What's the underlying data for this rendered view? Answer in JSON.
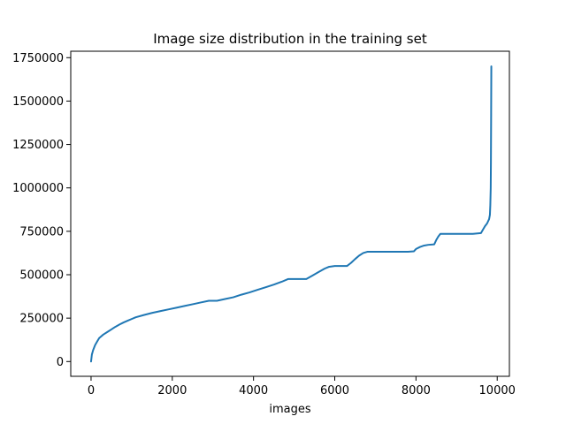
{
  "chart_data": {
    "type": "line",
    "title": "Image size distribution in the training set",
    "xlabel": "images",
    "ylabel": "",
    "xlim": [
      -500,
      10300
    ],
    "ylim": [
      -85000,
      1787000
    ],
    "xticks": [
      0,
      2000,
      4000,
      6000,
      8000,
      10000
    ],
    "yticks": [
      0,
      250000,
      500000,
      750000,
      1000000,
      1250000,
      1500000,
      1750000
    ],
    "xtick_labels": [
      "0",
      "2000",
      "4000",
      "6000",
      "8000",
      "10000"
    ],
    "ytick_labels": [
      "0",
      "250000",
      "500000",
      "750000",
      "1000000",
      "1250000",
      "1500000",
      "1750000"
    ],
    "grid": false,
    "line_color": "#1f77b4",
    "series": [
      {
        "x": [
          0,
          20,
          50,
          100,
          150,
          200,
          300,
          400,
          500,
          600,
          700,
          800,
          900,
          1000,
          1100,
          1300,
          1500,
          1700,
          1900,
          2100,
          2300,
          2500,
          2700,
          2900,
          3100,
          3300,
          3500,
          3700,
          3900,
          4100,
          4300,
          4500,
          4700,
          4850,
          5000,
          5150,
          5300,
          5450,
          5600,
          5750,
          5850,
          6000,
          6150,
          6300,
          6400,
          6500,
          6600,
          6700,
          6800,
          6900,
          7000,
          7200,
          7400,
          7600,
          7800,
          7950,
          8000,
          8100,
          8200,
          8300,
          8450,
          8500,
          8550,
          8600,
          8700,
          8800,
          9000,
          9200,
          9400,
          9600,
          9650,
          9700,
          9750,
          9800,
          9820,
          9830,
          9840,
          9845,
          9850,
          9855
        ],
        "y": [
          0,
          40000,
          65000,
          95000,
          115000,
          135000,
          155000,
          170000,
          185000,
          200000,
          213000,
          225000,
          235000,
          245000,
          255000,
          268000,
          280000,
          290000,
          300000,
          310000,
          320000,
          330000,
          340000,
          350000,
          350000,
          360000,
          370000,
          385000,
          398000,
          413000,
          428000,
          443000,
          460000,
          475000,
          475000,
          475000,
          475000,
          495000,
          515000,
          535000,
          545000,
          550000,
          550000,
          550000,
          568000,
          590000,
          610000,
          625000,
          632000,
          632000,
          632000,
          632000,
          632000,
          632000,
          632000,
          635000,
          648000,
          660000,
          668000,
          672000,
          675000,
          700000,
          720000,
          735000,
          735000,
          735000,
          735000,
          735000,
          735000,
          740000,
          760000,
          780000,
          795000,
          820000,
          845000,
          900000,
          1000000,
          1150000,
          1400000,
          1700000
        ]
      }
    ]
  }
}
